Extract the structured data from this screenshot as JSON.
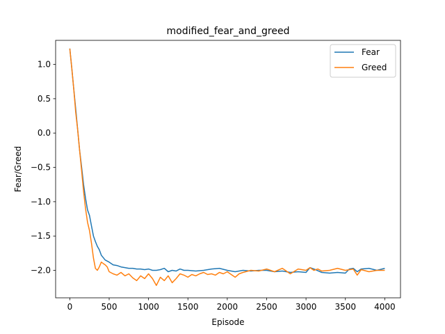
{
  "chart_data": {
    "type": "line",
    "title": "modified_fear_and_greed",
    "xlabel": "Episode",
    "ylabel": "Fear/Greed",
    "xlim": [
      -180,
      4200
    ],
    "ylim": [
      -2.4,
      1.35
    ],
    "xticks": [
      0,
      500,
      1000,
      1500,
      2000,
      2500,
      3000,
      3500,
      4000
    ],
    "xtick_labels": [
      "0",
      "500",
      "1000",
      "1500",
      "2000",
      "2500",
      "3000",
      "3500",
      "4000"
    ],
    "yticks": [
      1.0,
      0.5,
      0.0,
      -0.5,
      -1.0,
      -1.5,
      -2.0
    ],
    "ytick_labels": [
      "1.0",
      "0.5",
      "0.0",
      "−0.5",
      "−1.0",
      "−1.5",
      "−2.0"
    ],
    "grid": false,
    "legend_position": "top-right",
    "series": [
      {
        "name": "Fear",
        "color": "#1f77b4",
        "x": [
          0,
          25,
          50,
          75,
          100,
          125,
          150,
          175,
          200,
          225,
          250,
          275,
          300,
          325,
          350,
          375,
          400,
          450,
          500,
          550,
          600,
          650,
          700,
          750,
          800,
          850,
          900,
          950,
          1000,
          1050,
          1100,
          1150,
          1200,
          1250,
          1300,
          1350,
          1400,
          1450,
          1500,
          1600,
          1700,
          1800,
          1900,
          2000,
          2100,
          2200,
          2300,
          2400,
          2500,
          2600,
          2700,
          2800,
          2900,
          3000,
          3050,
          3100,
          3200,
          3300,
          3400,
          3500,
          3550,
          3600,
          3650,
          3700,
          3800,
          3900,
          4000
        ],
        "y": [
          1.23,
          0.95,
          0.65,
          0.35,
          0.05,
          -0.25,
          -0.5,
          -0.75,
          -0.95,
          -1.12,
          -1.2,
          -1.35,
          -1.5,
          -1.58,
          -1.65,
          -1.7,
          -1.78,
          -1.85,
          -1.88,
          -1.92,
          -1.93,
          -1.95,
          -1.96,
          -1.97,
          -1.97,
          -1.98,
          -1.98,
          -1.99,
          -1.98,
          -2.0,
          -2.0,
          -1.99,
          -1.97,
          -2.02,
          -2.0,
          -2.01,
          -1.98,
          -2.0,
          -2.0,
          -2.01,
          -2.0,
          -1.98,
          -1.97,
          -2.0,
          -2.02,
          -2.0,
          -2.01,
          -2.0,
          -2.0,
          -2.02,
          -2.01,
          -2.03,
          -2.02,
          -2.03,
          -1.96,
          -1.98,
          -2.03,
          -2.04,
          -2.03,
          -2.04,
          -1.98,
          -1.97,
          -2.02,
          -1.98,
          -1.97,
          -2.0,
          -1.97
        ]
      },
      {
        "name": "Greed",
        "color": "#ff7f0e",
        "x": [
          0,
          25,
          50,
          75,
          100,
          125,
          150,
          175,
          200,
          225,
          250,
          275,
          300,
          325,
          350,
          375,
          400,
          425,
          450,
          475,
          500,
          550,
          600,
          650,
          700,
          750,
          800,
          850,
          900,
          950,
          1000,
          1050,
          1100,
          1150,
          1200,
          1250,
          1300,
          1350,
          1400,
          1450,
          1500,
          1550,
          1600,
          1650,
          1700,
          1750,
          1800,
          1850,
          1900,
          1950,
          2000,
          2050,
          2100,
          2150,
          2200,
          2300,
          2400,
          2500,
          2600,
          2700,
          2800,
          2900,
          3000,
          3050,
          3100,
          3150,
          3200,
          3300,
          3400,
          3500,
          3600,
          3650,
          3700,
          3800,
          3900,
          4000
        ],
        "y": [
          1.23,
          0.95,
          0.65,
          0.3,
          0.05,
          -0.25,
          -0.55,
          -0.85,
          -1.1,
          -1.3,
          -1.42,
          -1.6,
          -1.82,
          -1.97,
          -2.0,
          -1.95,
          -1.88,
          -1.9,
          -1.92,
          -1.95,
          -2.02,
          -2.05,
          -2.07,
          -2.03,
          -2.08,
          -2.05,
          -2.11,
          -2.15,
          -2.08,
          -2.12,
          -2.05,
          -2.12,
          -2.22,
          -2.1,
          -2.15,
          -2.08,
          -2.18,
          -2.12,
          -2.05,
          -2.07,
          -2.1,
          -2.06,
          -2.08,
          -2.05,
          -2.03,
          -2.06,
          -2.05,
          -2.07,
          -2.03,
          -2.05,
          -2.02,
          -2.06,
          -2.1,
          -2.05,
          -2.03,
          -2.0,
          -2.01,
          -1.98,
          -2.02,
          -1.97,
          -2.05,
          -1.98,
          -2.0,
          -1.96,
          -2.0,
          -1.98,
          -2.01,
          -2.0,
          -1.97,
          -2.0,
          -1.98,
          -2.07,
          -1.99,
          -2.02,
          -2.0,
          -2.0
        ]
      }
    ]
  }
}
